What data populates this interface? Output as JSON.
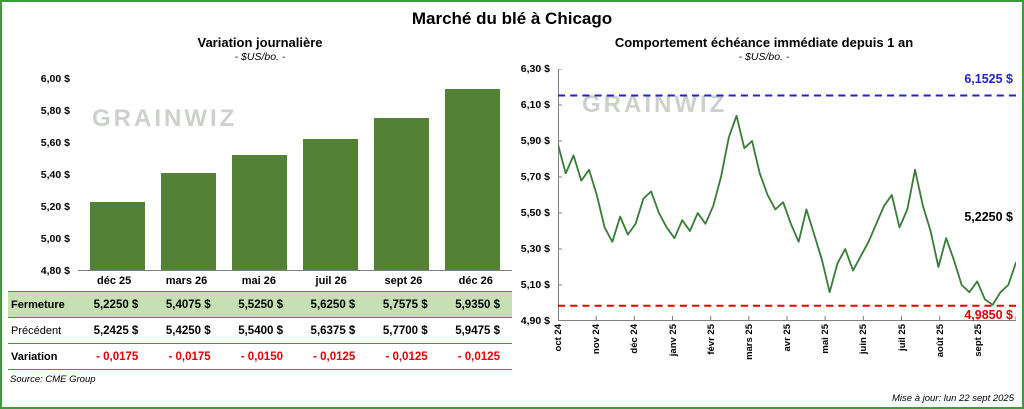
{
  "header": {
    "title": "Marché du blé à Chicago"
  },
  "watermark": "GRAINWIZ",
  "colors": {
    "frame_border": "#3f9b3f",
    "bar_green": "#538135",
    "line_green": "#3a7d3a",
    "high_blue": "#2323cc",
    "low_red": "#e60000",
    "close_row_bg": "#c6e0b4"
  },
  "left": {
    "title": "Variation journalière",
    "subtitle": "- $US/bo. -",
    "source": "Source: CME Group",
    "table": {
      "rows": [
        {
          "label": "Fermeture",
          "style": "close",
          "values": [
            "5,2250 $",
            "5,4075 $",
            "5,5250 $",
            "5,6250 $",
            "5,7575 $",
            "5,9350 $"
          ]
        },
        {
          "label": "Précédent",
          "style": "previous",
          "values": [
            "5,2425 $",
            "5,4250 $",
            "5,5400 $",
            "5,6375 $",
            "5,7700 $",
            "5,9475 $"
          ]
        },
        {
          "label": "Variation",
          "style": "variation",
          "values": [
            "- 0,0175",
            "- 0,0175",
            "- 0,0150",
            "- 0,0125",
            "- 0,0125",
            "- 0,0125"
          ]
        }
      ]
    }
  },
  "right": {
    "title": "Comportement échéance immédiate depuis 1 an",
    "subtitle": "- $US/bo. -",
    "updated": "Mise à jour: lun 22 sept 2025"
  },
  "chart_data": [
    {
      "type": "bar",
      "title": "Variation journalière",
      "subtitle": "- $US/bo. -",
      "categories": [
        "déc 25",
        "mars 26",
        "mai 26",
        "juil 26",
        "sept 26",
        "déc 26"
      ],
      "values": [
        5.225,
        5.4075,
        5.525,
        5.625,
        5.7575,
        5.935
      ],
      "ylim": [
        4.8,
        6.0
      ],
      "ytick_step": 0.2,
      "bar_color": "#538135",
      "grid": false
    },
    {
      "type": "line",
      "title": "Comportement échéance immédiate depuis 1 an",
      "subtitle": "- $US/bo. -",
      "x_labels": [
        "oct 24",
        "nov 24",
        "déc 24",
        "janv 25",
        "févr 25",
        "mars 25",
        "avr 25",
        "mai 25",
        "juin 25",
        "juil 25",
        "août 25",
        "sept 25"
      ],
      "values": [
        5.88,
        5.72,
        5.82,
        5.68,
        5.74,
        5.6,
        5.42,
        5.34,
        5.48,
        5.38,
        5.44,
        5.58,
        5.62,
        5.5,
        5.42,
        5.36,
        5.46,
        5.4,
        5.5,
        5.44,
        5.54,
        5.7,
        5.92,
        6.04,
        5.86,
        5.9,
        5.72,
        5.6,
        5.52,
        5.56,
        5.44,
        5.34,
        5.52,
        5.38,
        5.24,
        5.06,
        5.22,
        5.3,
        5.18,
        5.26,
        5.34,
        5.44,
        5.54,
        5.6,
        5.42,
        5.52,
        5.74,
        5.54,
        5.4,
        5.2,
        5.36,
        5.24,
        5.1,
        5.06,
        5.12,
        5.02,
        4.99,
        5.06,
        5.1,
        5.225
      ],
      "ylim": [
        4.9,
        6.3
      ],
      "ytick_step": 0.2,
      "line_color": "#3a7d3a",
      "grid": false,
      "annotations": [
        {
          "name": "high",
          "type": "hline",
          "value": 6.1525,
          "label": "6,1525 $",
          "color": "#2323cc",
          "label_at": 6.245
        },
        {
          "name": "last",
          "type": "point",
          "value": 5.225,
          "label": "5,2250 $",
          "color": "#000000",
          "label_at": 5.48
        },
        {
          "name": "low",
          "type": "hline",
          "value": 4.985,
          "label": "4,9850 $",
          "color": "#e60000",
          "label_at": 4.936
        }
      ]
    }
  ]
}
